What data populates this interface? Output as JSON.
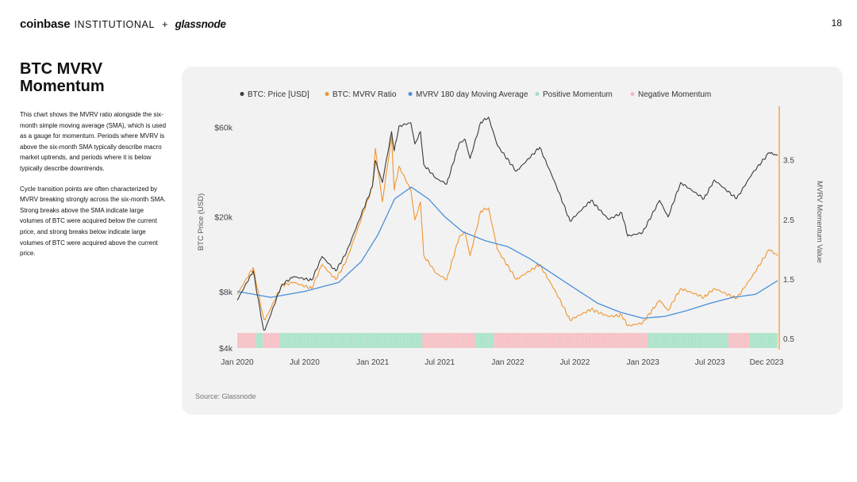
{
  "header": {
    "brand": "coinbase",
    "brand_sub": "INSTITUTIONAL",
    "plus": "+",
    "partner": "glassnode",
    "page_number": "18"
  },
  "title": "BTC MVRV Momentum",
  "description": [
    "This chart shows the MVRV ratio alongside the six-month simple moving average (SMA), which is used as a gauge for momentum. Periods where MVRV is above the six-month SMA typically describe macro market uptrends, and periods where it is below typically describe downtrends.",
    "Cycle transition points are often characterized by MVRV breaking strongly across the six-month SMA. Strong breaks above the SMA indicate large volumes of BTC were acquired below the current price, and strong breaks below indicate large volumes of BTC were acquired above the current price."
  ],
  "source": "Source: Glassnode",
  "colors": {
    "price": "#3a3a3a",
    "mvrv": "#f0962e",
    "sma": "#4a90d9",
    "positive": "#9fe0c2",
    "negative": "#f5b8be",
    "panel": "#f2f2f2"
  },
  "chart_data": {
    "type": "line",
    "legend_position": "top",
    "ylabel_left": "BTC Price (USD)",
    "ylabel_right": "MVRV Momentum Value",
    "y_left_scale": "log",
    "y_left_ticks": [
      {
        "value": 4000,
        "label": "$4k"
      },
      {
        "value": 8000,
        "label": "$8k"
      },
      {
        "value": 20000,
        "label": "$20k"
      },
      {
        "value": 60000,
        "label": "$60k"
      }
    ],
    "y_left_range": [
      4000,
      72000
    ],
    "y_right_ticks": [
      0.5,
      1.5,
      2.5,
      3.5
    ],
    "y_right_range": [
      0.35,
      4.3
    ],
    "x_range": [
      "2020-01-01",
      "2023-12-31"
    ],
    "x_ticks": [
      {
        "date": "2020-01-01",
        "label": "Jan 2020"
      },
      {
        "date": "2020-07-01",
        "label": "Jul 2020"
      },
      {
        "date": "2021-01-01",
        "label": "Jan 2021"
      },
      {
        "date": "2021-07-01",
        "label": "Jul 2021"
      },
      {
        "date": "2022-01-01",
        "label": "Jan 2022"
      },
      {
        "date": "2022-07-01",
        "label": "Jul 2022"
      },
      {
        "date": "2023-01-01",
        "label": "Jan 2023"
      },
      {
        "date": "2023-07-01",
        "label": "Jul 2023"
      },
      {
        "date": "2023-12-01",
        "label": "Dec 2023"
      }
    ],
    "grid": false,
    "series": [
      {
        "name": "BTC: Price [USD]",
        "axis": "left",
        "color": "#3a3a3a",
        "points": [
          [
            "2020-01-01",
            7200
          ],
          [
            "2020-02-13",
            10300
          ],
          [
            "2020-03-12",
            5000
          ],
          [
            "2020-03-16",
            5000
          ],
          [
            "2020-04-30",
            8700
          ],
          [
            "2020-06-01",
            9600
          ],
          [
            "2020-07-20",
            9200
          ],
          [
            "2020-08-17",
            12300
          ],
          [
            "2020-09-23",
            10300
          ],
          [
            "2020-10-21",
            12800
          ],
          [
            "2020-11-24",
            19000
          ],
          [
            "2020-12-31",
            29000
          ],
          [
            "2021-01-08",
            40000
          ],
          [
            "2021-01-27",
            30500
          ],
          [
            "2021-02-21",
            57000
          ],
          [
            "2021-02-28",
            45000
          ],
          [
            "2021-03-13",
            61000
          ],
          [
            "2021-04-14",
            63500
          ],
          [
            "2021-04-25",
            49000
          ],
          [
            "2021-05-10",
            57000
          ],
          [
            "2021-05-19",
            38000
          ],
          [
            "2021-06-22",
            32000
          ],
          [
            "2021-07-20",
            30000
          ],
          [
            "2021-08-22",
            49000
          ],
          [
            "2021-09-07",
            52000
          ],
          [
            "2021-09-21",
            41000
          ],
          [
            "2021-10-20",
            64000
          ],
          [
            "2021-11-10",
            68000
          ],
          [
            "2021-12-04",
            48000
          ],
          [
            "2022-01-24",
            35000
          ],
          [
            "2022-03-28",
            47000
          ],
          [
            "2022-05-10",
            30000
          ],
          [
            "2022-06-18",
            19000
          ],
          [
            "2022-08-14",
            24500
          ],
          [
            "2022-09-30",
            19400
          ],
          [
            "2022-11-05",
            21000
          ],
          [
            "2022-11-21",
            15800
          ],
          [
            "2022-12-31",
            16500
          ],
          [
            "2023-02-15",
            24500
          ],
          [
            "2023-03-10",
            20000
          ],
          [
            "2023-04-13",
            30500
          ],
          [
            "2023-06-15",
            25000
          ],
          [
            "2023-07-13",
            31500
          ],
          [
            "2023-09-11",
            25000
          ],
          [
            "2023-10-23",
            34000
          ],
          [
            "2023-12-08",
            44000
          ],
          [
            "2023-12-31",
            42500
          ]
        ]
      },
      {
        "name": "BTC: MVRV Ratio",
        "axis": "right",
        "color": "#f0962e",
        "points": [
          [
            "2020-01-01",
            1.25
          ],
          [
            "2020-02-13",
            1.7
          ],
          [
            "2020-03-12",
            0.85
          ],
          [
            "2020-03-16",
            0.82
          ],
          [
            "2020-04-30",
            1.4
          ],
          [
            "2020-06-01",
            1.45
          ],
          [
            "2020-07-20",
            1.35
          ],
          [
            "2020-08-17",
            1.75
          ],
          [
            "2020-09-23",
            1.5
          ],
          [
            "2020-10-21",
            1.8
          ],
          [
            "2020-11-24",
            2.4
          ],
          [
            "2020-12-31",
            3.05
          ],
          [
            "2021-01-08",
            3.7
          ],
          [
            "2021-01-27",
            2.8
          ],
          [
            "2021-02-21",
            3.9
          ],
          [
            "2021-02-28",
            3.0
          ],
          [
            "2021-03-13",
            3.4
          ],
          [
            "2021-04-14",
            3.0
          ],
          [
            "2021-04-25",
            2.5
          ],
          [
            "2021-05-10",
            2.8
          ],
          [
            "2021-05-19",
            1.9
          ],
          [
            "2021-06-22",
            1.6
          ],
          [
            "2021-07-20",
            1.5
          ],
          [
            "2021-08-22",
            2.2
          ],
          [
            "2021-09-07",
            2.3
          ],
          [
            "2021-09-21",
            1.9
          ],
          [
            "2021-10-20",
            2.65
          ],
          [
            "2021-11-10",
            2.7
          ],
          [
            "2021-12-04",
            2.0
          ],
          [
            "2022-01-24",
            1.5
          ],
          [
            "2022-03-28",
            1.75
          ],
          [
            "2022-05-10",
            1.3
          ],
          [
            "2022-06-18",
            0.82
          ],
          [
            "2022-08-14",
            1.0
          ],
          [
            "2022-09-30",
            0.88
          ],
          [
            "2022-11-05",
            0.9
          ],
          [
            "2022-11-21",
            0.72
          ],
          [
            "2022-12-31",
            0.77
          ],
          [
            "2023-02-15",
            1.15
          ],
          [
            "2023-03-10",
            0.98
          ],
          [
            "2023-04-13",
            1.35
          ],
          [
            "2023-06-15",
            1.2
          ],
          [
            "2023-07-13",
            1.35
          ],
          [
            "2023-09-11",
            1.18
          ],
          [
            "2023-10-23",
            1.55
          ],
          [
            "2023-12-08",
            2.0
          ],
          [
            "2023-12-31",
            1.9
          ]
        ]
      },
      {
        "name": "MVRV 180 day Moving Average",
        "axis": "right",
        "color": "#4a90d9",
        "points": [
          [
            "2020-01-01",
            1.3
          ],
          [
            "2020-04-01",
            1.2
          ],
          [
            "2020-07-01",
            1.3
          ],
          [
            "2020-10-01",
            1.45
          ],
          [
            "2020-12-01",
            1.8
          ],
          [
            "2021-01-15",
            2.25
          ],
          [
            "2021-03-01",
            2.85
          ],
          [
            "2021-04-15",
            3.05
          ],
          [
            "2021-06-01",
            2.85
          ],
          [
            "2021-07-15",
            2.55
          ],
          [
            "2021-09-01",
            2.3
          ],
          [
            "2021-11-01",
            2.15
          ],
          [
            "2022-01-01",
            2.05
          ],
          [
            "2022-03-01",
            1.85
          ],
          [
            "2022-05-01",
            1.6
          ],
          [
            "2022-07-01",
            1.35
          ],
          [
            "2022-09-01",
            1.1
          ],
          [
            "2022-11-01",
            0.95
          ],
          [
            "2023-01-01",
            0.85
          ],
          [
            "2023-03-01",
            0.88
          ],
          [
            "2023-05-01",
            0.98
          ],
          [
            "2023-07-01",
            1.1
          ],
          [
            "2023-09-01",
            1.2
          ],
          [
            "2023-11-01",
            1.25
          ],
          [
            "2023-12-31",
            1.48
          ]
        ]
      },
      {
        "name": "Positive Momentum",
        "color": "#9fe0c2"
      },
      {
        "name": "Negative Momentum",
        "color": "#f5b8be"
      }
    ],
    "momentum_periods": [
      {
        "start": "2020-01-01",
        "end": "2020-02-20",
        "state": "negative"
      },
      {
        "start": "2020-02-20",
        "end": "2020-03-10",
        "state": "positive"
      },
      {
        "start": "2020-03-10",
        "end": "2020-04-25",
        "state": "negative"
      },
      {
        "start": "2020-04-25",
        "end": "2021-05-15",
        "state": "positive"
      },
      {
        "start": "2021-05-15",
        "end": "2021-10-05",
        "state": "negative"
      },
      {
        "start": "2021-10-05",
        "end": "2021-11-25",
        "state": "positive"
      },
      {
        "start": "2021-11-25",
        "end": "2023-01-15",
        "state": "negative"
      },
      {
        "start": "2023-01-15",
        "end": "2023-08-20",
        "state": "positive"
      },
      {
        "start": "2023-08-20",
        "end": "2023-10-15",
        "state": "negative"
      },
      {
        "start": "2023-10-15",
        "end": "2023-12-31",
        "state": "positive"
      }
    ]
  }
}
